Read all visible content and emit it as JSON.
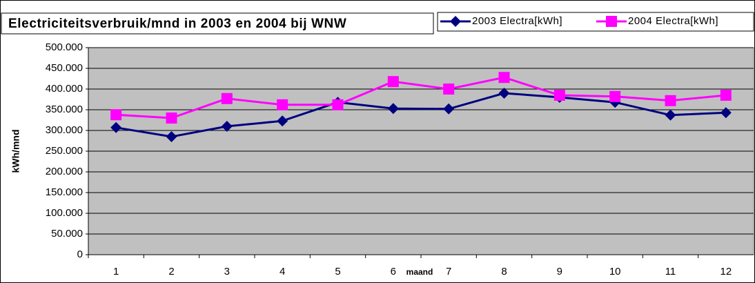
{
  "chart_data": {
    "type": "line",
    "title": "Electriciteitsverbruik/mnd in 2003 en 2004 bij WNW",
    "x_label": "maand",
    "y_label": "kWh/mnd",
    "categories": [
      "1",
      "2",
      "3",
      "4",
      "5",
      "6",
      "7",
      "8",
      "9",
      "10",
      "11",
      "12"
    ],
    "series": [
      {
        "name": "2003 Electra[kWh]",
        "color": "#000080",
        "marker": "diamond",
        "values": [
          307000,
          285000,
          310000,
          323000,
          368000,
          353000,
          352000,
          390000,
          380000,
          368000,
          337000,
          343000
        ]
      },
      {
        "name": "2004 Electra[kWh]",
        "color": "#ff00ff",
        "marker": "square",
        "values": [
          338000,
          330000,
          377000,
          362000,
          362000,
          418000,
          400000,
          428000,
          385000,
          382000,
          372000,
          385000
        ]
      }
    ],
    "ylim": [
      0,
      500000
    ],
    "yticks": [
      0,
      {
        "value": 50000,
        "label": "50.000"
      },
      {
        "value": 100000,
        "label": "100.000"
      },
      {
        "value": 150000,
        "label": "150.000"
      },
      {
        "value": 200000,
        "label": "200.000"
      },
      {
        "value": 250000,
        "label": "250.000"
      },
      {
        "value": 300000,
        "label": "300.000"
      },
      {
        "value": 350000,
        "label": "350.000"
      },
      {
        "value": 400000,
        "label": "400.000"
      },
      {
        "value": 450000,
        "label": "450.000"
      },
      {
        "value": 500000,
        "label": "500.000"
      }
    ],
    "grid": true,
    "plot_background": "#c0c0c0",
    "legend": "top-right"
  }
}
